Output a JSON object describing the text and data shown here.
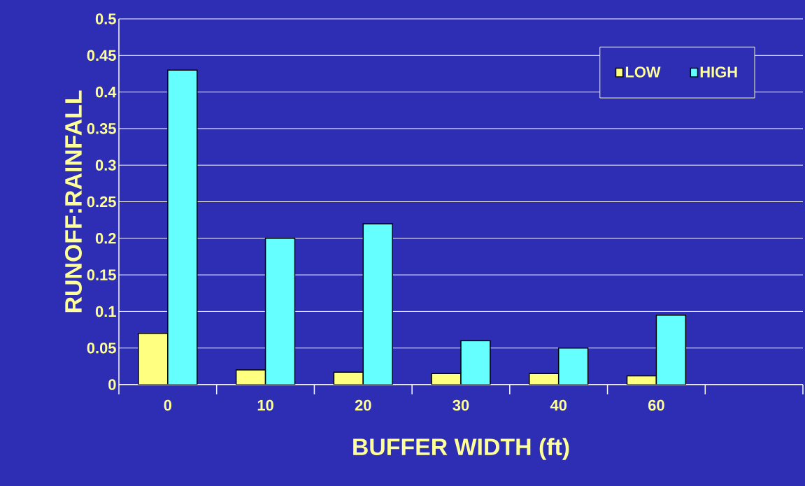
{
  "chart_data": {
    "type": "bar",
    "xlabel": "BUFFER WIDTH (ft)",
    "ylabel": "RUNOFF:RAINFALL",
    "categories": [
      "0",
      "10",
      "20",
      "30",
      "40",
      "60",
      null
    ],
    "series": [
      {
        "name": "LOW",
        "color": "#ffff80",
        "values": [
          0.07,
          0.02,
          0.017,
          0.015,
          0.015,
          0.012,
          null
        ]
      },
      {
        "name": "HIGH",
        "color": "#66ffff",
        "values": [
          0.43,
          0.2,
          0.22,
          0.06,
          0.05,
          0.095,
          null
        ]
      }
    ],
    "ylim": [
      0,
      0.5
    ],
    "yticks": [
      0,
      0.05,
      0.1,
      0.15,
      0.2,
      0.25,
      0.3,
      0.35,
      0.4,
      0.45,
      0.5
    ],
    "grid": "y",
    "legend": "top right"
  }
}
